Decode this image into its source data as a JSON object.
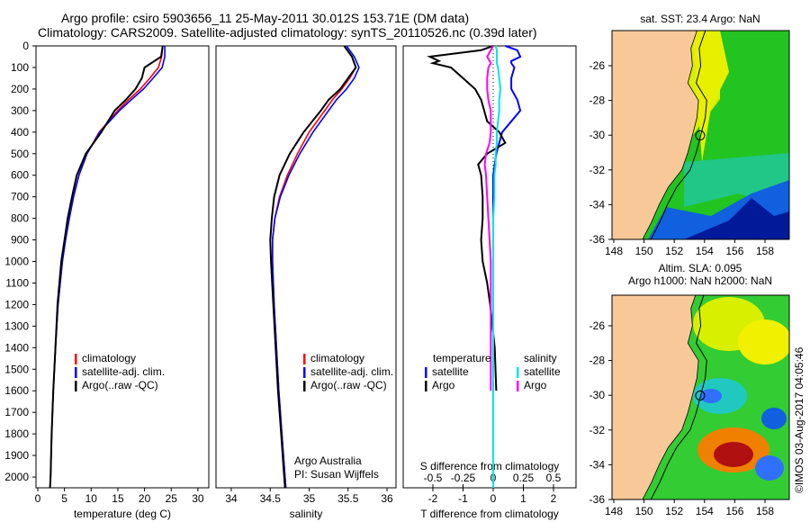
{
  "title_line1": "Argo profile: csiro 5903656_11 25-May-2011 30.012S 153.71E (DM data)",
  "title_line2": "Climatology: CARS2009. Satellite-adjusted climatology: synTS_20110526.nc (0.39d later)",
  "footer_stamp": "©IMOS 03-Aug-2017 04:05:46",
  "colors": {
    "climatology": "#ff0000",
    "satellite": "#0000ff",
    "argo": "#000000",
    "sal_sat": "#00e5e5",
    "sal_argo": "#ff00ff",
    "land": "#f8c898"
  },
  "chart_data": [
    {
      "type": "line",
      "id": "temp",
      "xlabel": "temperature (deg C)",
      "ylabel": "",
      "xlim": [
        -1,
        31
      ],
      "ylim": [
        2050,
        0
      ],
      "xticks": [
        0,
        5,
        10,
        15,
        20,
        25,
        30
      ],
      "yticks": [
        0,
        100,
        200,
        300,
        400,
        500,
        600,
        700,
        800,
        900,
        1000,
        1100,
        1200,
        1300,
        1400,
        1500,
        1600,
        1700,
        1800,
        1900,
        2000
      ],
      "depth": [
        0,
        50,
        100,
        150,
        200,
        250,
        300,
        400,
        500,
        600,
        700,
        800,
        900,
        1000,
        1200,
        1400,
        1600,
        1800,
        2000,
        2050
      ],
      "series": [
        {
          "name": "climatology",
          "values": [
            23.4,
            23.2,
            22.6,
            21,
            19.2,
            17,
            15,
            11.5,
            9.2,
            7.7,
            6.7,
            5.9,
            5.2,
            4.6,
            3.8,
            3.3,
            2.9,
            2.6,
            2.4,
            2.3
          ]
        },
        {
          "name": "satellite-adj. clim.",
          "values": [
            23.8,
            23.8,
            23.3,
            21.6,
            19.8,
            17.5,
            15.3,
            11.6,
            9.2,
            7.7,
            6.7,
            5.9,
            5.2,
            4.6,
            3.8,
            3.3,
            2.9,
            2.6,
            2.4,
            2.3
          ]
        },
        {
          "name": "Argo(..raw -QC)",
          "values": [
            23.4,
            23.1,
            20,
            19.5,
            18.3,
            16.5,
            14.4,
            11.9,
            9.0,
            7.3,
            6.4,
            5.6,
            5.0,
            4.4,
            3.7,
            3.3,
            2.9,
            2.6,
            2.4,
            2.3
          ]
        }
      ],
      "legend": [
        "climatology",
        "satellite-adj. clim.",
        "Argo(..raw -QC)"
      ],
      "legend_position": "lower-middle"
    },
    {
      "type": "line",
      "id": "sal",
      "xlabel": "salinity",
      "xlim": [
        33.9,
        36.1
      ],
      "ylim": [
        2050,
        0
      ],
      "xticks": [
        34,
        34.5,
        35,
        35.5,
        36
      ],
      "xticklabels": [
        "34",
        "34.5",
        "35",
        "35.5",
        "36"
      ],
      "depth": [
        0,
        50,
        100,
        150,
        200,
        250,
        300,
        400,
        500,
        600,
        700,
        800,
        900,
        1000,
        1200,
        1400,
        1600,
        1800,
        2000,
        2050
      ],
      "series": [
        {
          "name": "climatology",
          "values": [
            35.45,
            35.55,
            35.6,
            35.52,
            35.42,
            35.3,
            35.2,
            35.0,
            34.85,
            34.72,
            34.62,
            34.56,
            34.53,
            34.53,
            34.55,
            34.58,
            34.61,
            34.65,
            34.69,
            34.7
          ]
        },
        {
          "name": "satellite-adj. clim.",
          "values": [
            35.48,
            35.58,
            35.64,
            35.58,
            35.48,
            35.35,
            35.25,
            35.05,
            34.88,
            34.74,
            34.63,
            34.56,
            34.53,
            34.53,
            34.55,
            34.58,
            34.61,
            34.65,
            34.69,
            34.7
          ]
        },
        {
          "name": "Argo(..raw -QC)",
          "values": [
            35.45,
            35.55,
            35.6,
            35.5,
            35.4,
            35.25,
            35.15,
            34.93,
            34.75,
            34.62,
            34.55,
            34.52,
            34.5,
            34.51,
            34.54,
            34.57,
            34.6,
            34.64,
            34.68,
            34.69
          ]
        }
      ],
      "legend": [
        "climatology",
        "satellite-adj. clim.",
        "Argo(..raw -QC)"
      ],
      "annotation": [
        "Argo Australia",
        "PI: Susan Wijffels"
      ]
    },
    {
      "type": "line",
      "id": "diff",
      "xlabel": "T difference from climatology",
      "x2label": "S difference from climatology",
      "xlim": [
        -3,
        3
      ],
      "x2lim": [
        -0.75,
        0.75
      ],
      "ylim": [
        2050,
        0
      ],
      "xticks": [
        -2,
        -1,
        0,
        1,
        2
      ],
      "x2ticks": [
        -0.5,
        -0.25,
        0,
        0.25,
        0.5
      ],
      "x2ticklabels": [
        "-0.5",
        "-0.25",
        "0",
        "0.25",
        "0.5"
      ],
      "depth": [
        0,
        20,
        50,
        70,
        80,
        100,
        150,
        200,
        250,
        300,
        350,
        400,
        450,
        500,
        550,
        600,
        700,
        800,
        900,
        1000,
        1100,
        1200,
        1400,
        1600,
        1800,
        2000,
        2050
      ],
      "series": [
        {
          "name": "temperature satellite",
          "axis": "T",
          "values": [
            0.4,
            0.8,
            0.9,
            0.6,
            0.6,
            0.7,
            0.6,
            0.6,
            0.8,
            0.9,
            0.6,
            0.3,
            0.2,
            0.1,
            0.05,
            0,
            0,
            0,
            0,
            0,
            0,
            0,
            0,
            0,
            0,
            0,
            0
          ]
        },
        {
          "name": "temperature Argo",
          "axis": "T",
          "values": [
            0,
            -0.4,
            -2.1,
            -1.8,
            -2.0,
            -1.4,
            -1.0,
            -0.6,
            -0.4,
            -0.3,
            -0.2,
            0.2,
            0.4,
            -0.2,
            -0.5,
            -0.4,
            -0.35,
            -0.35,
            -0.4,
            -0.35,
            -0.2,
            -0.1,
            0.05,
            0.1,
            null,
            null,
            null
          ]
        },
        {
          "name": "salinity satellite",
          "axis": "S",
          "values": [
            0.02,
            0.03,
            0.03,
            0.03,
            0.03,
            0.04,
            0.05,
            0.06,
            0.05,
            0.05,
            0.04,
            0.03,
            0.03,
            0.02,
            0.02,
            0.01,
            0.01,
            0,
            0,
            0,
            0,
            0,
            0,
            0,
            0,
            0,
            0
          ]
        },
        {
          "name": "salinity Argo",
          "axis": "S",
          "values": [
            0,
            -0.02,
            -0.05,
            -0.03,
            -0.02,
            -0.04,
            -0.05,
            -0.05,
            -0.04,
            -0.02,
            -0.02,
            -0.02,
            -0.03,
            -0.06,
            -0.07,
            -0.06,
            -0.05,
            -0.04,
            -0.03,
            -0.02,
            -0.02,
            -0.02,
            -0.02,
            -0.02,
            null,
            null,
            null
          ]
        }
      ],
      "legend_t": {
        "title": "temperature",
        "items": [
          "satellite",
          "Argo"
        ]
      },
      "legend_s": {
        "title": "salinity",
        "items": [
          "satellite",
          "Argo"
        ]
      }
    },
    {
      "type": "heatmap",
      "id": "map_sst",
      "title": "sat. SST: 23.4  Argo: NaN",
      "xticks": [
        148,
        150,
        152,
        154,
        156,
        158
      ],
      "yticks": [
        -26,
        -28,
        -30,
        -32,
        -34,
        -36
      ],
      "xlim": [
        146.8,
        159.5
      ],
      "ylim": [
        -36,
        -23.7
      ],
      "argo_position": [
        153.71,
        -30.012
      ]
    },
    {
      "type": "heatmap",
      "id": "map_sla",
      "title": "Altim. SLA: 0.095",
      "subtitle": "Argo h1000: NaN h2000: NaN",
      "xticks": [
        148,
        150,
        152,
        154,
        156,
        158
      ],
      "yticks": [
        -26,
        -28,
        -30,
        -32,
        -34,
        -36
      ],
      "xlim": [
        146.8,
        159.5
      ],
      "ylim": [
        -36,
        -23.5
      ],
      "argo_position": [
        153.71,
        -30.012
      ]
    }
  ]
}
